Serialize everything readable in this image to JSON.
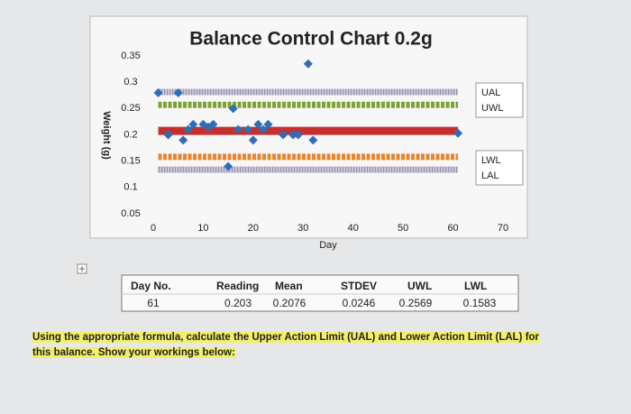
{
  "chart_data": {
    "type": "control",
    "title": "Balance Control Chart 0.2g",
    "y_label": "Weight (g)",
    "x_label": "Day",
    "xlim": [
      0,
      70
    ],
    "xticks": [
      0,
      10,
      20,
      30,
      40,
      50,
      60,
      70
    ],
    "ylim": [
      0.05,
      0.35
    ],
    "yticks": [
      0.05,
      0.1,
      0.15,
      0.2,
      0.25,
      0.3,
      0.35
    ],
    "series": [
      {
        "name": "UAL",
        "color": "#9b93b3",
        "x": [
          1,
          61
        ],
        "values": [
          0.2814,
          0.2814
        ]
      },
      {
        "name": "UWL",
        "color": "#7ba233",
        "x": [
          1,
          61
        ],
        "values": [
          0.2569,
          0.2569
        ]
      },
      {
        "color": "#c4302e",
        "x": [
          1,
          61
        ],
        "values": [
          0.2076,
          0.2076
        ]
      },
      {
        "name": "LWL",
        "color": "#e8842c",
        "x": [
          1,
          61
        ],
        "values": [
          0.1583,
          0.1583
        ]
      },
      {
        "name": "LAL",
        "color": "#9b93b3",
        "x": [
          1,
          61
        ],
        "values": [
          0.1338,
          0.1338
        ]
      }
    ],
    "readings": {
      "color": "#2f6db6",
      "x": [
        1,
        3,
        5,
        6,
        7,
        8,
        10,
        11,
        12,
        15,
        16,
        17,
        19,
        20,
        21,
        22,
        23,
        26,
        28,
        29,
        31,
        32,
        61
      ],
      "values": [
        0.28,
        0.2,
        0.28,
        0.19,
        0.21,
        0.22,
        0.22,
        0.215,
        0.22,
        0.14,
        0.25,
        0.21,
        0.21,
        0.19,
        0.22,
        0.21,
        0.22,
        0.2,
        0.2,
        0.2,
        0.335,
        0.19,
        0.203
      ]
    }
  },
  "table": {
    "headers": [
      "Day No.",
      "Reading",
      "Mean",
      "STDEV",
      "UWL",
      "LWL"
    ],
    "rows": [
      [
        61,
        0.203,
        0.2076,
        0.0246,
        0.2569,
        0.1583
      ]
    ]
  },
  "question": "Using the appropriate formula, calculate the Upper Action Limit (UAL) and Lower Action Limit (LAL) for this balance. Show your workings below:"
}
